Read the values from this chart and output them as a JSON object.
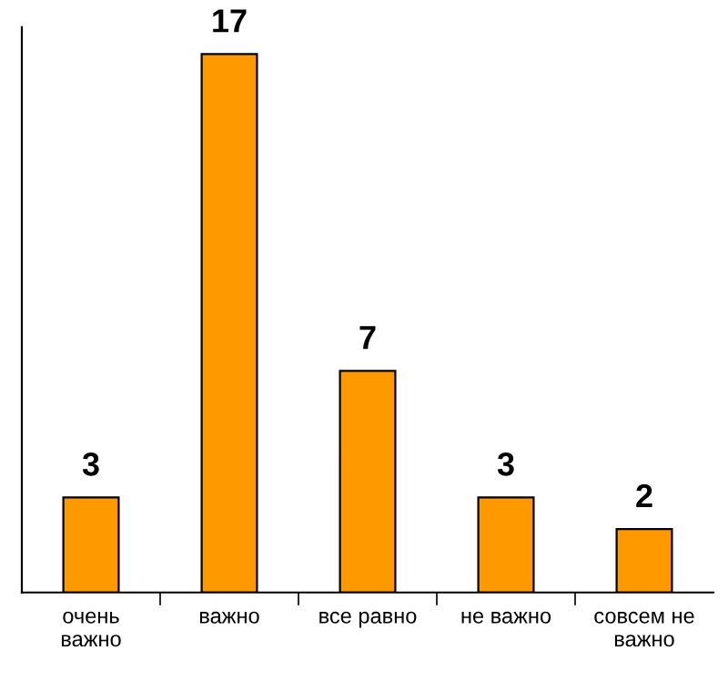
{
  "chart_data": {
    "type": "bar",
    "categories": [
      "очень важно",
      "важно",
      "все равно",
      "не важно",
      "совсем не важно"
    ],
    "values": [
      3,
      17,
      7,
      3,
      2
    ],
    "color": "#ff9900",
    "data_labels": true,
    "grid": false,
    "legend": false
  }
}
